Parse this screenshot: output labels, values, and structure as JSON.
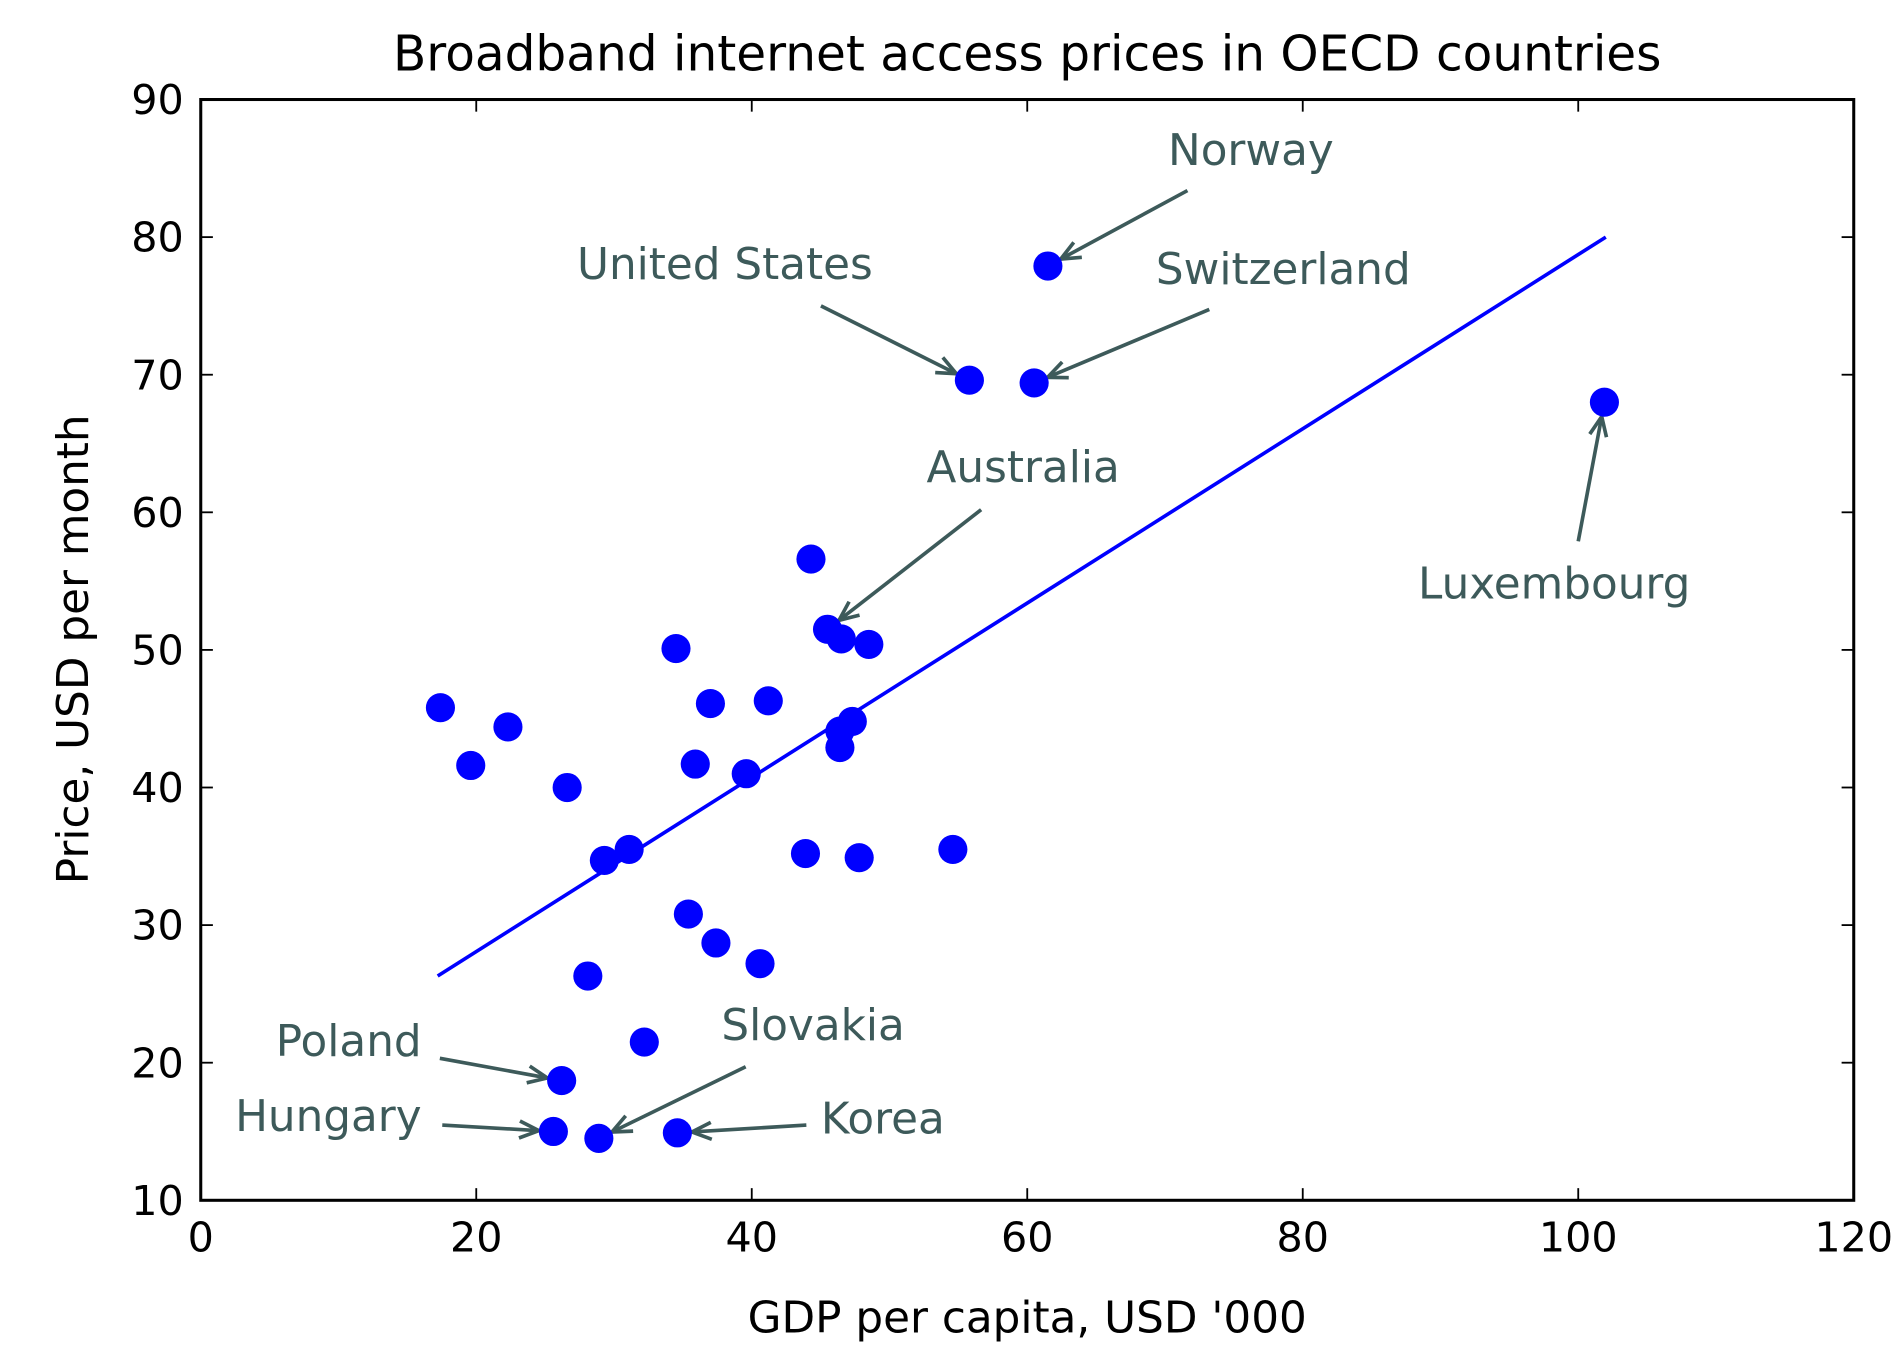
{
  "chart_data": {
    "type": "scatter",
    "title": "Broadband internet access prices in OECD countries",
    "xlabel": "GDP per capita, USD '000",
    "ylabel": "Price, USD per month",
    "xlim": [
      0,
      120
    ],
    "ylim": [
      10,
      90
    ],
    "xticks": [
      "0",
      "20",
      "40",
      "60",
      "80",
      "100",
      "120"
    ],
    "yticks": [
      "10",
      "20",
      "30",
      "40",
      "50",
      "60",
      "70",
      "80",
      "90"
    ],
    "grid": false,
    "colors": {
      "points": "#0000ff",
      "fit_line": "#0000ff",
      "annotation": "#3d5a5a"
    },
    "points": [
      {
        "x": 61.5,
        "y": 77.9,
        "label": "Norway"
      },
      {
        "x": 55.8,
        "y": 69.6,
        "label": "United States"
      },
      {
        "x": 60.5,
        "y": 69.4,
        "label": "Switzerland"
      },
      {
        "x": 101.9,
        "y": 68.0,
        "label": "Luxembourg"
      },
      {
        "x": 44.3,
        "y": 56.6
      },
      {
        "x": 45.5,
        "y": 51.5,
        "label": "Australia"
      },
      {
        "x": 46.5,
        "y": 50.8
      },
      {
        "x": 48.5,
        "y": 50.4
      },
      {
        "x": 34.5,
        "y": 50.1
      },
      {
        "x": 17.4,
        "y": 45.8
      },
      {
        "x": 22.3,
        "y": 44.4
      },
      {
        "x": 37.0,
        "y": 46.1
      },
      {
        "x": 41.2,
        "y": 46.3
      },
      {
        "x": 47.3,
        "y": 44.8
      },
      {
        "x": 46.4,
        "y": 44.1
      },
      {
        "x": 46.4,
        "y": 42.9
      },
      {
        "x": 19.6,
        "y": 41.6
      },
      {
        "x": 35.9,
        "y": 41.7
      },
      {
        "x": 39.6,
        "y": 41.0
      },
      {
        "x": 26.6,
        "y": 40.0
      },
      {
        "x": 29.3,
        "y": 34.7
      },
      {
        "x": 31.1,
        "y": 35.5
      },
      {
        "x": 43.9,
        "y": 35.2
      },
      {
        "x": 47.8,
        "y": 34.9
      },
      {
        "x": 54.6,
        "y": 35.5
      },
      {
        "x": 35.4,
        "y": 30.8
      },
      {
        "x": 37.4,
        "y": 28.7
      },
      {
        "x": 40.6,
        "y": 27.2
      },
      {
        "x": 28.1,
        "y": 26.3
      },
      {
        "x": 32.2,
        "y": 21.5
      },
      {
        "x": 26.2,
        "y": 18.7,
        "label": "Poland"
      },
      {
        "x": 25.6,
        "y": 15.0,
        "label": "Hungary"
      },
      {
        "x": 28.9,
        "y": 14.5,
        "label": "Slovakia"
      },
      {
        "x": 34.6,
        "y": 14.9,
        "label": "Korea"
      }
    ],
    "fit_line": [
      {
        "x": 17.2,
        "y": 26.3
      },
      {
        "x": 102.0,
        "y": 80.0
      }
    ]
  }
}
